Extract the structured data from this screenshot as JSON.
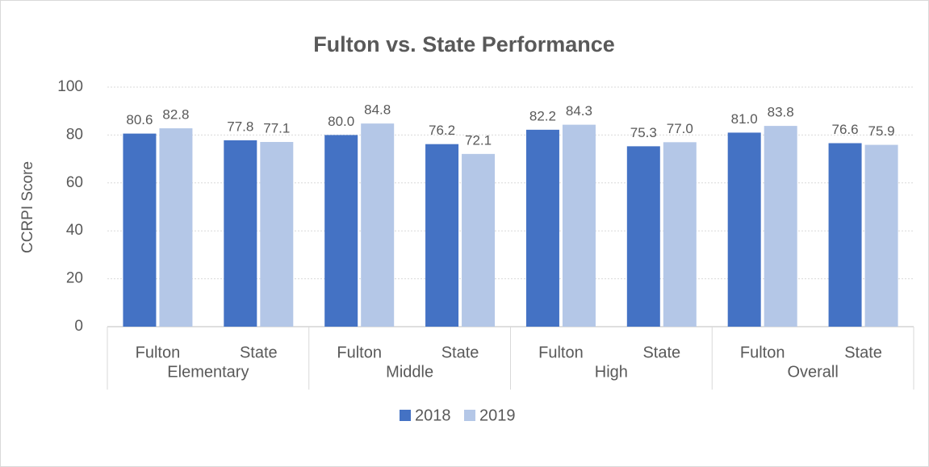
{
  "chart_data": {
    "type": "bar",
    "title": "Fulton vs. State Performance",
    "y_label": "CCRPI Score",
    "categories": [
      "Fulton",
      "State",
      "Fulton",
      "State",
      "Fulton",
      "State",
      "Fulton",
      "State"
    ],
    "category_groups": [
      "Elementary",
      "Middle",
      "High",
      "Overall"
    ],
    "series": [
      {
        "name": "2018",
        "color": "#4472c4",
        "values": [
          80.6,
          77.8,
          80,
          76.2,
          82.2,
          75.3,
          81,
          76.6
        ],
        "value_labels": [
          "80.6",
          "77.8",
          "80.0",
          "76.2",
          "82.2",
          "75.3",
          "81.0",
          "76.6"
        ]
      },
      {
        "name": "2019",
        "color": "#b4c7e7",
        "values": [
          82.8,
          77.1,
          84.8,
          72.1,
          84.3,
          77,
          83.8,
          75.9
        ],
        "value_labels": [
          "82.8",
          "77.1",
          "84.8",
          "72.1",
          "84.3",
          "77.0",
          "83.8",
          "75.9"
        ]
      }
    ],
    "ylim": [
      0,
      100
    ],
    "yticks": [
      0,
      20,
      40,
      60,
      80,
      100
    ],
    "grid": true,
    "legend": "bottom"
  }
}
